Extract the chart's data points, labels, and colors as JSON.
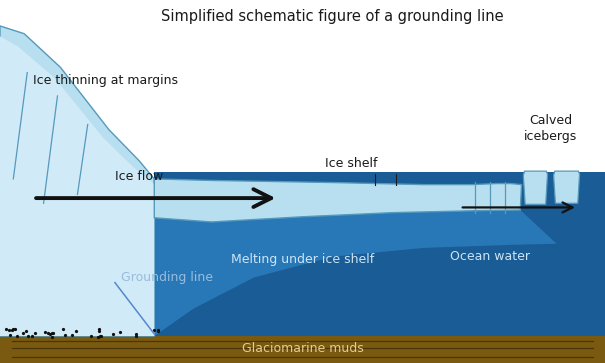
{
  "title": "Simplified schematic figure of a grounding line",
  "title_fontsize": 10.5,
  "bg_color": "#111111",
  "colors": {
    "white_bg": "#ffffff",
    "light_ice": "#b8dff0",
    "light_ice2": "#d0eaf8",
    "dark_ocean": "#1a5c96",
    "medium_ocean": "#2878b8",
    "seafloor": "#7a5a10",
    "seafloor_dark": "#4a3508",
    "ice_outline": "#5599bb",
    "gravel": "#222222"
  },
  "labels": {
    "ice_thinning": "Ice thinning at margins",
    "ice_flow": "Ice flow",
    "ice_shelf": "Ice shelf",
    "calved": "Calved\nicebergs",
    "melting": "Melting under ice shelf",
    "ocean_water": "Ocean water",
    "grounding_line": "Grounding line",
    "glaciomarine": "Glaciomarine muds"
  },
  "label_fontsize": 9,
  "label_color": "#1a1a1a"
}
